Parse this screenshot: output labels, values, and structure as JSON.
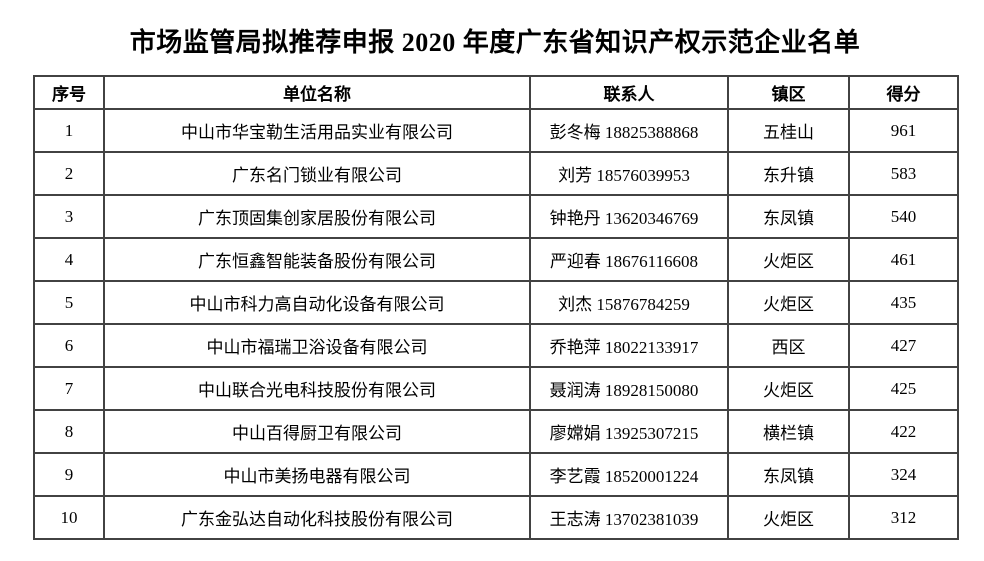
{
  "page": {
    "title": "市场监管局拟推荐申报 2020 年度广东省知识产权示范企业名单"
  },
  "table": {
    "columns": [
      "序号",
      "单位名称",
      "联系人",
      "镇区",
      "得分"
    ],
    "rows": [
      {
        "seq": "1",
        "company": "中山市华宝勒生活用品实业有限公司",
        "contact": "彭冬梅 18825388868",
        "town": "五桂山",
        "score": "961"
      },
      {
        "seq": "2",
        "company": "广东名门锁业有限公司",
        "contact": "刘芳 18576039953",
        "town": "东升镇",
        "score": "583"
      },
      {
        "seq": "3",
        "company": "广东顶固集创家居股份有限公司",
        "contact": "钟艳丹 13620346769",
        "town": "东凤镇",
        "score": "540"
      },
      {
        "seq": "4",
        "company": "广东恒鑫智能装备股份有限公司",
        "contact": "严迎春 18676116608",
        "town": "火炬区",
        "score": "461"
      },
      {
        "seq": "5",
        "company": "中山市科力高自动化设备有限公司",
        "contact": "刘杰 15876784259",
        "town": "火炬区",
        "score": "435"
      },
      {
        "seq": "6",
        "company": "中山市福瑞卫浴设备有限公司",
        "contact": "乔艳萍 18022133917",
        "town": "西区",
        "score": "427"
      },
      {
        "seq": "7",
        "company": "中山联合光电科技股份有限公司",
        "contact": "聂润涛 18928150080",
        "town": "火炬区",
        "score": "425"
      },
      {
        "seq": "8",
        "company": "中山百得厨卫有限公司",
        "contact": "廖嫦娟 13925307215",
        "town": "横栏镇",
        "score": "422"
      },
      {
        "seq": "9",
        "company": "中山市美扬电器有限公司",
        "contact": "李艺霞 18520001224",
        "town": "东凤镇",
        "score": "324"
      },
      {
        "seq": "10",
        "company": "广东金弘达自动化科技股份有限公司",
        "contact": "王志涛 13702381039",
        "town": "火炬区",
        "score": "312"
      }
    ],
    "colors": {
      "border": "#424242",
      "text": "#000000",
      "background": "#ffffff"
    }
  }
}
